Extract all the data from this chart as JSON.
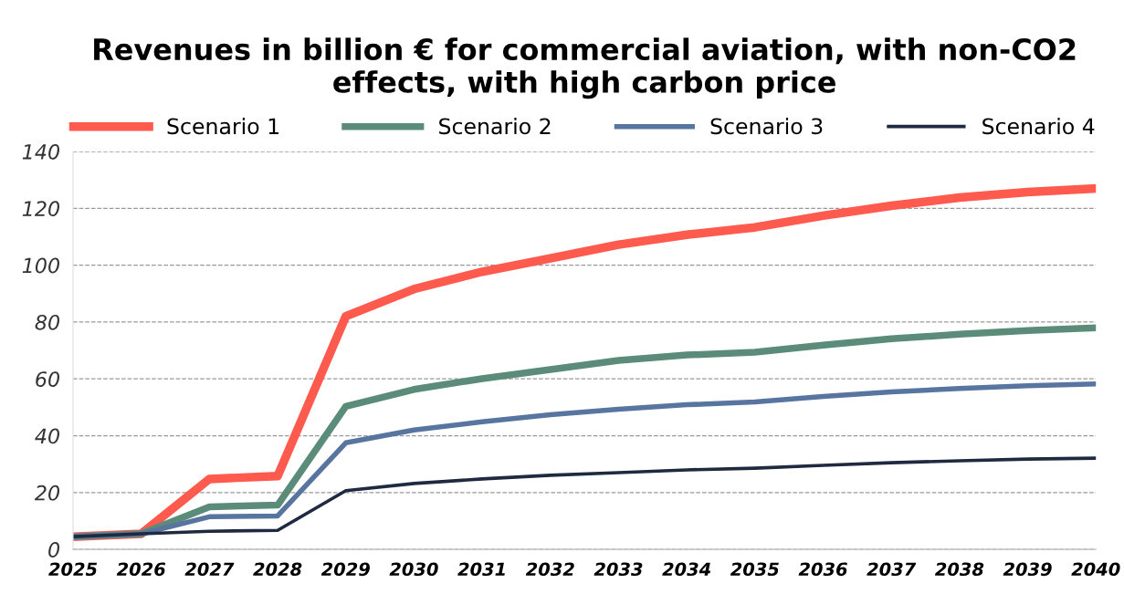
{
  "chart_data": {
    "type": "line",
    "title": "Revenues in billion € for commercial aviation, with non-CO2 effects, with high carbon price",
    "x": [
      2025,
      2026,
      2027,
      2028,
      2029,
      2030,
      2031,
      2032,
      2033,
      2034,
      2035,
      2036,
      2037,
      2038,
      2039,
      2040
    ],
    "series": [
      {
        "name": "Scenario 1",
        "color": "#ff5a4e",
        "values": [
          4.5,
          5.5,
          24.8,
          25.8,
          82,
          91.6,
          97.7,
          102.4,
          107.2,
          110.7,
          113.3,
          117.4,
          120.9,
          123.8,
          125.7,
          127
        ]
      },
      {
        "name": "Scenario 2",
        "color": "#5b8c7a",
        "values": [
          4.5,
          5.5,
          15,
          15.6,
          50.3,
          56.3,
          60.1,
          63.3,
          66.5,
          68.4,
          69.4,
          71.9,
          74.1,
          75.7,
          77,
          78
        ]
      },
      {
        "name": "Scenario 3",
        "color": "#5875a0",
        "values": [
          4.5,
          5.5,
          11.5,
          11.8,
          37.5,
          42,
          44.9,
          47.4,
          49.3,
          50.9,
          51.9,
          53.8,
          55.4,
          56.6,
          57.6,
          58.2
        ]
      },
      {
        "name": "Scenario 4",
        "color": "#1f2a40",
        "values": [
          4.5,
          5.5,
          6.4,
          6.7,
          20.7,
          23.2,
          24.8,
          26.1,
          27,
          28,
          28.6,
          29.6,
          30.5,
          31.2,
          31.8,
          32.1
        ]
      }
    ],
    "xlim": [
      2025,
      2040
    ],
    "xticks": [
      2025,
      2026,
      2027,
      2028,
      2029,
      2030,
      2031,
      2032,
      2033,
      2034,
      2035,
      2036,
      2037,
      2038,
      2039,
      2040
    ],
    "ylim": [
      0,
      140
    ],
    "yticks": [
      0,
      20,
      40,
      60,
      80,
      100,
      120,
      140
    ],
    "grid": "y",
    "legend": "top",
    "marker": "none",
    "line_style": "solid"
  }
}
